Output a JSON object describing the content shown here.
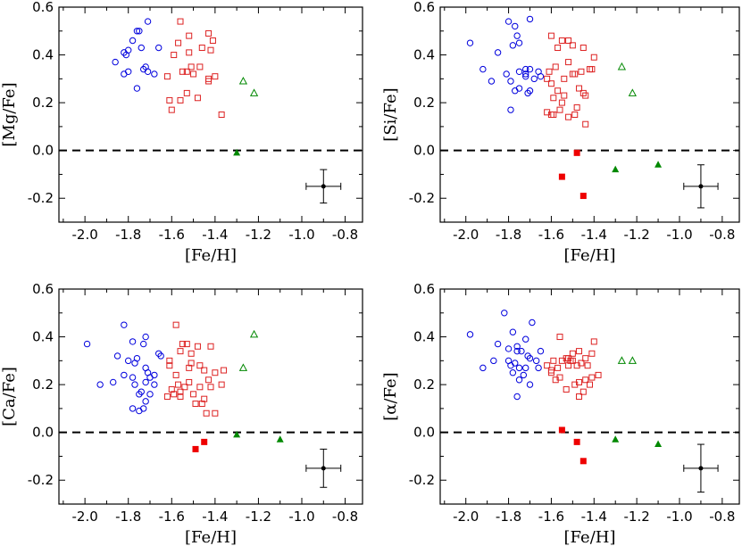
{
  "chart_data": [
    {
      "type": "scatter",
      "xlabel": "[Fe/H]",
      "ylabel": "[Mg/Fe]",
      "xlim": [
        -2.12,
        -0.72
      ],
      "ylim": [
        -0.3,
        0.6
      ],
      "xticks": [
        "-2.0",
        "-1.8",
        "-1.6",
        "-1.4",
        "-1.2",
        "-1.0",
        "-0.8"
      ],
      "yticks": [
        "-0.2",
        "0.0",
        "0.2",
        "0.4",
        "0.6"
      ],
      "reference_line_y": 0.0,
      "error_bar": {
        "x": -0.9,
        "y": -0.15,
        "xerr": 0.08,
        "yerr": 0.07
      },
      "series": [
        {
          "name": "open circles",
          "color": "#0000dd",
          "marker": "circle-open",
          "x": [
            -1.71,
            -1.75,
            -1.76,
            -1.78,
            -1.8,
            -1.82,
            -1.81,
            -1.74,
            -1.66,
            -1.72,
            -1.71,
            -1.68,
            -1.8,
            -1.86,
            -1.82,
            -1.73,
            -1.76
          ],
          "y": [
            0.54,
            0.5,
            0.5,
            0.46,
            0.42,
            0.41,
            0.4,
            0.43,
            0.43,
            0.35,
            0.33,
            0.32,
            0.33,
            0.37,
            0.32,
            0.34,
            0.26
          ]
        },
        {
          "name": "open squares",
          "color": "#dd2222",
          "marker": "square-open",
          "x": [
            -1.56,
            -1.43,
            -1.52,
            -1.41,
            -1.57,
            -1.52,
            -1.46,
            -1.59,
            -1.42,
            -1.51,
            -1.53,
            -1.47,
            -1.5,
            -1.55,
            -1.62,
            -1.4,
            -1.43,
            -1.43,
            -1.48,
            -1.53,
            -1.56,
            -1.61,
            -1.37,
            -1.6
          ],
          "y": [
            0.54,
            0.49,
            0.48,
            0.46,
            0.45,
            0.41,
            0.43,
            0.4,
            0.42,
            0.35,
            0.33,
            0.35,
            0.32,
            0.33,
            0.31,
            0.31,
            0.3,
            0.29,
            0.22,
            0.24,
            0.21,
            0.21,
            0.15,
            0.17
          ]
        },
        {
          "name": "open triangles",
          "color": "#008800",
          "marker": "triangle-open",
          "x": [
            -1.27,
            -1.22
          ],
          "y": [
            0.29,
            0.24
          ]
        },
        {
          "name": "filled triangles",
          "color": "#008800",
          "marker": "triangle-filled",
          "x": [
            -1.3
          ],
          "y": [
            -0.01
          ]
        }
      ]
    },
    {
      "type": "scatter",
      "xlabel": "[Fe/H]",
      "ylabel": "[Si/Fe]",
      "xlim": [
        -2.12,
        -0.72
      ],
      "ylim": [
        -0.3,
        0.6
      ],
      "xticks": [
        "-2.0",
        "-1.8",
        "-1.6",
        "-1.4",
        "-1.2",
        "-1.0",
        "-0.8"
      ],
      "yticks": [
        "-0.2",
        "0.0",
        "0.2",
        "0.4",
        "0.6"
      ],
      "reference_line_y": 0.0,
      "error_bar": {
        "x": -0.9,
        "y": -0.15,
        "xerr": 0.08,
        "yerr": 0.09
      },
      "series": [
        {
          "name": "open circles",
          "color": "#0000dd",
          "marker": "circle-open",
          "x": [
            -1.8,
            -1.7,
            -1.77,
            -1.76,
            -1.75,
            -1.78,
            -1.85,
            -1.98,
            -1.92,
            -1.72,
            -1.7,
            -1.66,
            -1.75,
            -1.72,
            -1.68,
            -1.65,
            -1.72,
            -1.81,
            -1.79,
            -1.88,
            -1.75,
            -1.7,
            -1.71,
            -1.77,
            -1.79
          ],
          "y": [
            0.54,
            0.55,
            0.52,
            0.48,
            0.45,
            0.44,
            0.41,
            0.45,
            0.34,
            0.34,
            0.34,
            0.33,
            0.33,
            0.32,
            0.3,
            0.31,
            0.31,
            0.32,
            0.29,
            0.29,
            0.26,
            0.25,
            0.24,
            0.25,
            0.17
          ]
        },
        {
          "name": "open squares",
          "color": "#dd2222",
          "marker": "square-open",
          "x": [
            -1.6,
            -1.55,
            -1.52,
            -1.5,
            -1.57,
            -1.45,
            -1.4,
            -1.52,
            -1.58,
            -1.61,
            -1.62,
            -1.6,
            -1.54,
            -1.46,
            -1.42,
            -1.41,
            -1.49,
            -1.5,
            -1.47,
            -1.57,
            -1.54,
            -1.59,
            -1.45,
            -1.44,
            -1.55,
            -1.48,
            -1.56,
            -1.62,
            -1.59,
            -1.49,
            -1.52,
            -1.44,
            -1.6
          ],
          "y": [
            0.48,
            0.46,
            0.46,
            0.44,
            0.43,
            0.43,
            0.39,
            0.37,
            0.35,
            0.33,
            0.3,
            0.28,
            0.3,
            0.33,
            0.34,
            0.34,
            0.32,
            0.32,
            0.26,
            0.25,
            0.23,
            0.22,
            0.24,
            0.23,
            0.2,
            0.18,
            0.17,
            0.16,
            0.15,
            0.15,
            0.14,
            0.11,
            0.15
          ]
        },
        {
          "name": "filled squares",
          "color": "#ee0000",
          "marker": "square-filled",
          "x": [
            -1.48,
            -1.55,
            -1.45
          ],
          "y": [
            -0.01,
            -0.11,
            -0.19
          ]
        },
        {
          "name": "open triangles",
          "color": "#008800",
          "marker": "triangle-open",
          "x": [
            -1.27,
            -1.22
          ],
          "y": [
            0.35,
            0.24
          ]
        },
        {
          "name": "filled triangles",
          "color": "#008800",
          "marker": "triangle-filled",
          "x": [
            -1.3,
            -1.1
          ],
          "y": [
            -0.08,
            -0.06
          ]
        }
      ]
    },
    {
      "type": "scatter",
      "xlabel": "[Fe/H]",
      "ylabel": "[Ca/Fe]",
      "xlim": [
        -2.12,
        -0.72
      ],
      "ylim": [
        -0.3,
        0.6
      ],
      "xticks": [
        "-2.0",
        "-1.8",
        "-1.6",
        "-1.4",
        "-1.2",
        "-1.0",
        "-0.8"
      ],
      "yticks": [
        "-0.2",
        "0.0",
        "0.2",
        "0.4",
        "0.6"
      ],
      "reference_line_y": 0.0,
      "error_bar": {
        "x": -0.9,
        "y": -0.15,
        "xerr": 0.08,
        "yerr": 0.08
      },
      "series": [
        {
          "name": "open circles",
          "color": "#0000dd",
          "marker": "circle-open",
          "x": [
            -1.99,
            -1.82,
            -1.78,
            -1.72,
            -1.73,
            -1.66,
            -1.65,
            -1.76,
            -1.8,
            -1.85,
            -1.77,
            -1.72,
            -1.71,
            -1.68,
            -1.82,
            -1.78,
            -1.7,
            -1.72,
            -1.77,
            -1.68,
            -1.74,
            -1.75,
            -1.7,
            -1.87,
            -1.93,
            -1.72,
            -1.78,
            -1.73,
            -1.75
          ],
          "y": [
            0.37,
            0.45,
            0.38,
            0.4,
            0.37,
            0.33,
            0.32,
            0.31,
            0.3,
            0.32,
            0.29,
            0.27,
            0.25,
            0.24,
            0.24,
            0.23,
            0.23,
            0.21,
            0.2,
            0.2,
            0.17,
            0.16,
            0.16,
            0.21,
            0.2,
            0.13,
            0.1,
            0.1,
            0.09
          ]
        },
        {
          "name": "open squares",
          "color": "#dd2222",
          "marker": "square-open",
          "x": [
            -1.58,
            -1.55,
            -1.53,
            -1.48,
            -1.42,
            -1.56,
            -1.51,
            -1.61,
            -1.61,
            -1.51,
            -1.47,
            -1.52,
            -1.45,
            -1.4,
            -1.36,
            -1.58,
            -1.43,
            -1.37,
            -1.42,
            -1.47,
            -1.52,
            -1.54,
            -1.57,
            -1.6,
            -1.56,
            -1.59,
            -1.56,
            -1.62,
            -1.5,
            -1.45,
            -1.46,
            -1.49,
            -1.44,
            -1.4
          ],
          "y": [
            0.45,
            0.37,
            0.37,
            0.36,
            0.36,
            0.34,
            0.33,
            0.3,
            0.28,
            0.29,
            0.28,
            0.27,
            0.26,
            0.25,
            0.26,
            0.24,
            0.22,
            0.2,
            0.19,
            0.19,
            0.21,
            0.19,
            0.2,
            0.18,
            0.17,
            0.16,
            0.15,
            0.15,
            0.16,
            0.14,
            0.12,
            0.12,
            0.08,
            0.08
          ]
        },
        {
          "name": "filled squares",
          "color": "#ee0000",
          "marker": "square-filled",
          "x": [
            -1.45,
            -1.49
          ],
          "y": [
            -0.04,
            -0.07
          ]
        },
        {
          "name": "open triangles",
          "color": "#008800",
          "marker": "triangle-open",
          "x": [
            -1.22,
            -1.27
          ],
          "y": [
            0.41,
            0.27
          ]
        },
        {
          "name": "filled triangles",
          "color": "#008800",
          "marker": "triangle-filled",
          "x": [
            -1.3,
            -1.1
          ],
          "y": [
            -0.01,
            -0.03
          ]
        }
      ]
    },
    {
      "type": "scatter",
      "xlabel": "[Fe/H]",
      "ylabel": "[α/Fe]",
      "xlim": [
        -2.12,
        -0.72
      ],
      "ylim": [
        -0.3,
        0.6
      ],
      "xticks": [
        "-2.0",
        "-1.8",
        "-1.6",
        "-1.4",
        "-1.2",
        "-1.0",
        "-0.8"
      ],
      "yticks": [
        "-0.2",
        "0.0",
        "0.2",
        "0.4",
        "0.6"
      ],
      "reference_line_y": 0.0,
      "error_bar": {
        "x": -0.9,
        "y": -0.15,
        "xerr": 0.08,
        "yerr": 0.1
      },
      "series": [
        {
          "name": "open circles",
          "color": "#0000dd",
          "marker": "circle-open",
          "x": [
            -1.82,
            -1.69,
            -1.78,
            -1.72,
            -1.76,
            -1.8,
            -1.85,
            -1.98,
            -1.87,
            -1.76,
            -1.74,
            -1.71,
            -1.7,
            -1.8,
            -1.79,
            -1.72,
            -1.75,
            -1.67,
            -1.65,
            -1.92,
            -1.78,
            -1.77,
            -1.73,
            -1.7,
            -1.75,
            -1.76,
            -1.66
          ],
          "y": [
            0.5,
            0.46,
            0.42,
            0.39,
            0.36,
            0.35,
            0.37,
            0.41,
            0.3,
            0.34,
            0.34,
            0.32,
            0.31,
            0.3,
            0.28,
            0.27,
            0.27,
            0.3,
            0.34,
            0.27,
            0.25,
            0.29,
            0.24,
            0.2,
            0.22,
            0.15,
            0.27
          ]
        },
        {
          "name": "open squares",
          "color": "#dd2222",
          "marker": "square-open",
          "x": [
            -1.56,
            -1.4,
            -1.47,
            -1.5,
            -1.41,
            -1.44,
            -1.53,
            -1.52,
            -1.51,
            -1.5,
            -1.55,
            -1.59,
            -1.46,
            -1.43,
            -1.48,
            -1.52,
            -1.57,
            -1.62,
            -1.6,
            -1.38,
            -1.41,
            -1.44,
            -1.47,
            -1.56,
            -1.49,
            -1.42,
            -1.45,
            -1.53,
            -1.58,
            -1.6,
            -1.47
          ],
          "y": [
            0.4,
            0.38,
            0.34,
            0.33,
            0.33,
            0.31,
            0.31,
            0.31,
            0.3,
            0.3,
            0.3,
            0.3,
            0.29,
            0.28,
            0.28,
            0.28,
            0.27,
            0.28,
            0.26,
            0.24,
            0.23,
            0.22,
            0.21,
            0.23,
            0.2,
            0.2,
            0.17,
            0.18,
            0.22,
            0.25,
            0.15
          ]
        },
        {
          "name": "filled squares",
          "color": "#ee0000",
          "marker": "square-filled",
          "x": [
            -1.55,
            -1.48,
            -1.45
          ],
          "y": [
            0.01,
            -0.04,
            -0.12
          ]
        },
        {
          "name": "open triangles",
          "color": "#008800",
          "marker": "triangle-open",
          "x": [
            -1.27,
            -1.22
          ],
          "y": [
            0.3,
            0.3
          ]
        },
        {
          "name": "filled triangles",
          "color": "#008800",
          "marker": "triangle-filled",
          "x": [
            -1.3,
            -1.1
          ],
          "y": [
            -0.03,
            -0.05
          ]
        }
      ]
    }
  ]
}
